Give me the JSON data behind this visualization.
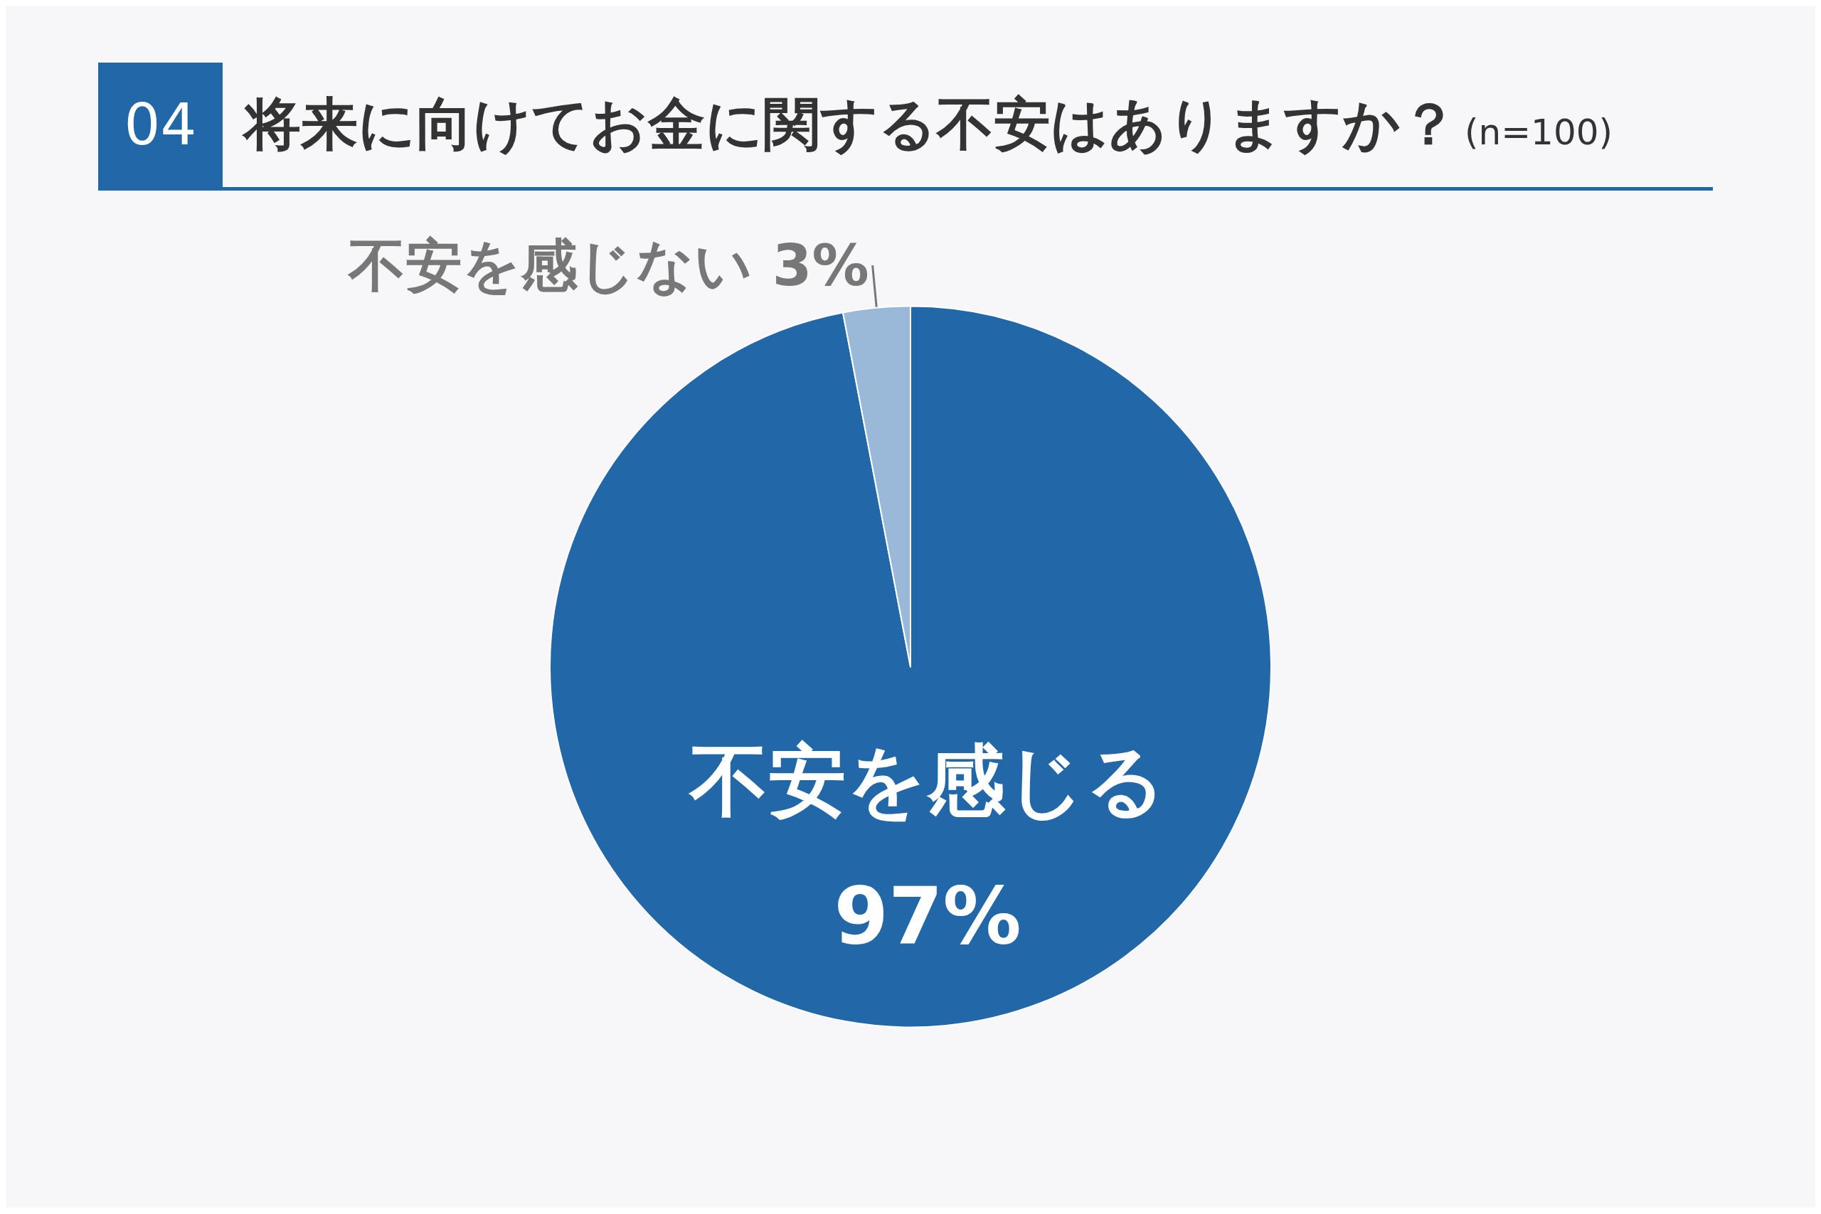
{
  "chart_data": {
    "type": "pie",
    "title": "将来に向けてお金に関する不安はありますか？",
    "subtitle": "(n=100)",
    "annotations": [
      "04"
    ],
    "categories": [
      "不安を感じる",
      "不安を感じない"
    ],
    "values": [
      97,
      3
    ],
    "colors": [
      "#2268a8",
      "#9ab9d8"
    ],
    "value_labels": [
      "97%",
      "3%"
    ],
    "legend": false
  }
}
